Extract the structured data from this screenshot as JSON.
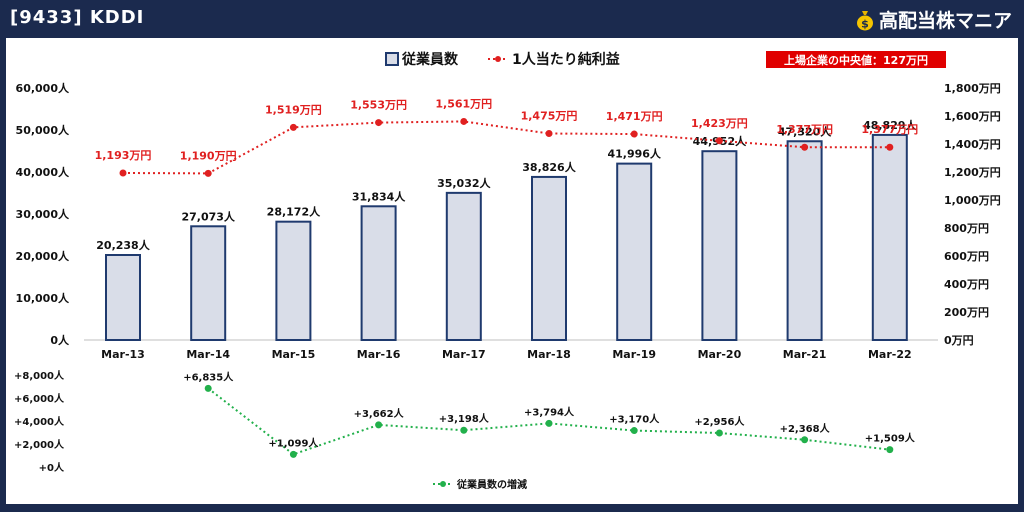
{
  "header": {
    "title": "[9433] KDDI",
    "brand": "高配当株マニア",
    "brand_icon": "money-bag-icon"
  },
  "colors": {
    "background": "#1b2a4e",
    "bar_fill": "#d9dde8",
    "bar_stroke": "#1f3a6e",
    "profit_line": "#e02020",
    "change_line": "#22b04b",
    "badge": "#e00000"
  },
  "badge_text": "上場企業の中央値：127万円",
  "chart_data": [
    {
      "type": "bar+line",
      "categories": [
        "Mar-13",
        "Mar-14",
        "Mar-15",
        "Mar-16",
        "Mar-17",
        "Mar-18",
        "Mar-19",
        "Mar-20",
        "Mar-21",
        "Mar-22"
      ],
      "series": [
        {
          "name": "従業員数",
          "type": "bar",
          "axis": "left",
          "values": [
            20238,
            27073,
            28172,
            31834,
            35032,
            38826,
            41996,
            44952,
            47320,
            48829
          ],
          "labels": [
            "20,238人",
            "27,073人",
            "28,172人",
            "31,834人",
            "35,032人",
            "38,826人",
            "41,996人",
            "44,952人",
            "47,320人",
            "48,829人"
          ]
        },
        {
          "name": "1人当たり純利益",
          "type": "line",
          "axis": "right",
          "values": [
            1193,
            1190,
            1519,
            1553,
            1561,
            1475,
            1471,
            1423,
            1377,
            1377
          ],
          "labels": [
            "1,193万円",
            "1,190万円",
            "1,519万円",
            "1,553万円",
            "1,561万円",
            "1,475万円",
            "1,471万円",
            "1,423万円",
            "1,377万円",
            "1,377万円"
          ]
        }
      ],
      "y_left": {
        "min": 0,
        "max": 60000,
        "ticks": [
          "0人",
          "10,000人",
          "20,000人",
          "30,000人",
          "40,000人",
          "50,000人",
          "60,000人"
        ]
      },
      "y_right": {
        "min": 0,
        "max": 1800,
        "ticks": [
          "0万円",
          "200万円",
          "400万円",
          "600万円",
          "800万円",
          "1,000万円",
          "1,200万円",
          "1,400万円",
          "1,600万円",
          "1,800万円"
        ]
      },
      "legend_position": "top-center",
      "grid": false
    },
    {
      "type": "line",
      "categories": [
        "Mar-13",
        "Mar-14",
        "Mar-15",
        "Mar-16",
        "Mar-17",
        "Mar-18",
        "Mar-19",
        "Mar-20",
        "Mar-21",
        "Mar-22"
      ],
      "series": [
        {
          "name": "従業員数の増減",
          "points": [
            {
              "x": "Mar-14",
              "y": 6835,
              "label": "+6,835人"
            },
            {
              "x": "Mar-15",
              "y": 1099,
              "label": "+1,099人"
            },
            {
              "x": "Mar-16",
              "y": 3662,
              "label": "+3,662人"
            },
            {
              "x": "Mar-17",
              "y": 3198,
              "label": "+3,198人"
            },
            {
              "x": "Mar-18",
              "y": 3794,
              "label": "+3,794人"
            },
            {
              "x": "Mar-19",
              "y": 3170,
              "label": "+3,170人"
            },
            {
              "x": "Mar-20",
              "y": 2956,
              "label": "+2,956人"
            },
            {
              "x": "Mar-21",
              "y": 2368,
              "label": "+2,368人"
            },
            {
              "x": "Mar-22",
              "y": 1509,
              "label": "+1,509人"
            }
          ]
        }
      ],
      "y": {
        "min": 0,
        "max": 8000,
        "ticks": [
          "+0人",
          "+2,000人",
          "+4,000人",
          "+6,000人",
          "+8,000人"
        ]
      },
      "legend_position": "bottom-center",
      "grid": false
    }
  ]
}
